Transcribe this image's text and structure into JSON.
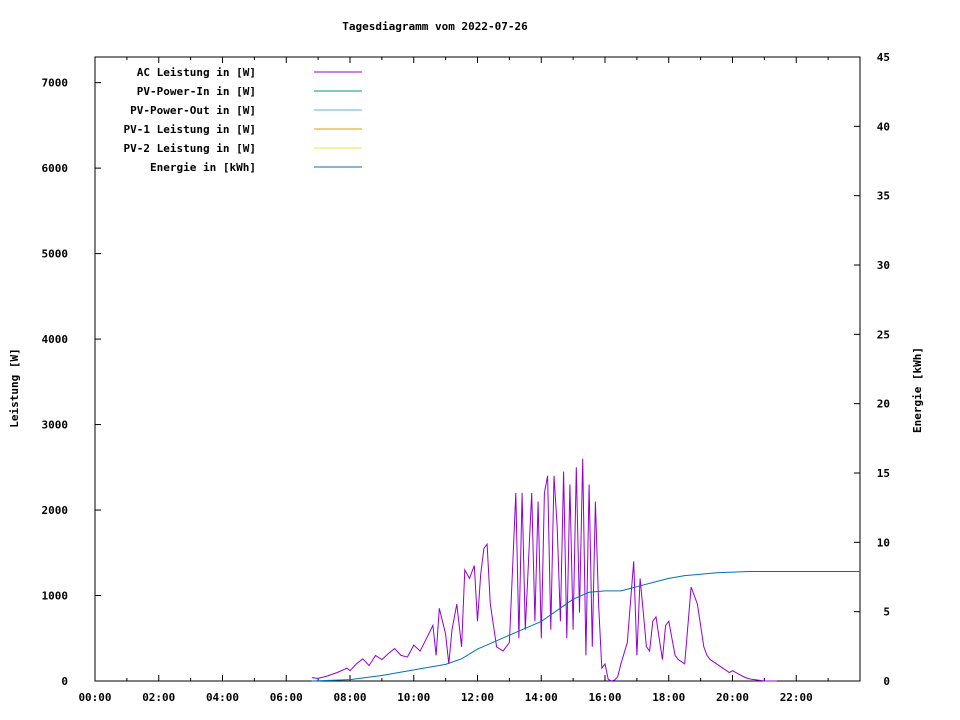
{
  "chart_data": {
    "type": "line",
    "title": "Tagesdiagramm vom 2022-07-26",
    "ylabel": "Leistung [W]",
    "y2label": "Energie [kWh]",
    "xlim": [
      0,
      24
    ],
    "ylim": [
      0,
      7300
    ],
    "y2lim": [
      0,
      45
    ],
    "x_ticks": [
      "00:00",
      "02:00",
      "04:00",
      "06:00",
      "08:00",
      "10:00",
      "12:00",
      "14:00",
      "16:00",
      "18:00",
      "20:00",
      "22:00"
    ],
    "y_ticks": [
      "0",
      "1000",
      "2000",
      "3000",
      "4000",
      "5000",
      "6000",
      "7000"
    ],
    "y2_ticks": [
      "0",
      "5",
      "10",
      "15",
      "20",
      "25",
      "30",
      "35",
      "40",
      "45"
    ],
    "legend_position": "top-left",
    "series": [
      {
        "name": "AC Leistung in [W]",
        "color": "#9400d3",
        "axis": "left",
        "x_unit": "hours",
        "x": [
          6.8,
          7.0,
          7.3,
          7.6,
          7.9,
          8.0,
          8.2,
          8.4,
          8.6,
          8.8,
          9.0,
          9.2,
          9.4,
          9.6,
          9.8,
          10.0,
          10.2,
          10.4,
          10.6,
          10.7,
          10.8,
          11.0,
          11.1,
          11.2,
          11.35,
          11.5,
          11.6,
          11.75,
          11.9,
          12.0,
          12.1,
          12.2,
          12.3,
          12.4,
          12.6,
          12.8,
          13.0,
          13.2,
          13.3,
          13.4,
          13.5,
          13.6,
          13.7,
          13.8,
          13.9,
          14.0,
          14.1,
          14.2,
          14.3,
          14.4,
          14.5,
          14.6,
          14.7,
          14.8,
          14.9,
          15.0,
          15.1,
          15.2,
          15.3,
          15.4,
          15.5,
          15.6,
          15.7,
          15.8,
          15.9,
          16.0,
          16.1,
          16.2,
          16.3,
          16.4,
          16.5,
          16.7,
          16.9,
          17.0,
          17.1,
          17.2,
          17.3,
          17.4,
          17.5,
          17.6,
          17.7,
          17.8,
          17.9,
          18.0,
          18.1,
          18.2,
          18.3,
          18.5,
          18.7,
          18.9,
          19.1,
          19.2,
          19.3,
          19.5,
          19.7,
          19.9,
          20.0,
          20.2,
          20.4,
          20.6,
          20.8,
          21.0,
          21.2,
          21.4
        ],
        "y": [
          40,
          30,
          60,
          100,
          150,
          120,
          200,
          260,
          180,
          300,
          250,
          320,
          380,
          300,
          280,
          420,
          350,
          500,
          650,
          300,
          850,
          550,
          200,
          600,
          900,
          400,
          1300,
          1200,
          1350,
          700,
          1250,
          1550,
          1600,
          900,
          400,
          350,
          450,
          2200,
          500,
          2200,
          600,
          1400,
          2200,
          700,
          2100,
          500,
          2200,
          2400,
          600,
          2400,
          1800,
          700,
          2450,
          500,
          2300,
          600,
          2500,
          800,
          2600,
          300,
          2300,
          400,
          2100,
          900,
          150,
          200,
          20,
          0,
          10,
          50,
          200,
          450,
          1400,
          300,
          1200,
          800,
          400,
          350,
          700,
          750,
          500,
          250,
          650,
          700,
          500,
          300,
          250,
          200,
          1100,
          900,
          400,
          300,
          250,
          200,
          150,
          100,
          120,
          80,
          40,
          20,
          10,
          0,
          0,
          0
        ],
        "label_values": []
      },
      {
        "name": "PV-Power-In in [W]",
        "color": "#009e73",
        "axis": "left",
        "x": [],
        "y": []
      },
      {
        "name": "PV-Power-Out in [W]",
        "color": "#56b4e9",
        "axis": "left",
        "x": [],
        "y": []
      },
      {
        "name": "PV-1 Leistung in [W]",
        "color": "#e69f00",
        "axis": "left",
        "x": [],
        "y": []
      },
      {
        "name": "PV-2 Leistung in [W]",
        "color": "#f0e442",
        "axis": "left",
        "x": [],
        "y": []
      },
      {
        "name": "Energie in [kWh]",
        "color": "#0072b2",
        "axis": "right",
        "x": [
          6.8,
          8.0,
          9.0,
          10.0,
          11.0,
          11.5,
          12.0,
          12.5,
          13.0,
          13.5,
          14.0,
          14.5,
          15.0,
          15.5,
          16.0,
          16.5,
          17.0,
          17.5,
          18.0,
          18.5,
          19.0,
          19.5,
          20.0,
          20.5,
          21.0,
          21.5,
          22.0,
          24.0
        ],
        "y": [
          0.0,
          0.1,
          0.4,
          0.8,
          1.2,
          1.6,
          2.3,
          2.8,
          3.3,
          3.8,
          4.3,
          5.1,
          5.9,
          6.4,
          6.5,
          6.5,
          6.8,
          7.1,
          7.4,
          7.6,
          7.7,
          7.8,
          7.85,
          7.9,
          7.9,
          7.9,
          7.9,
          7.9
        ]
      }
    ]
  }
}
